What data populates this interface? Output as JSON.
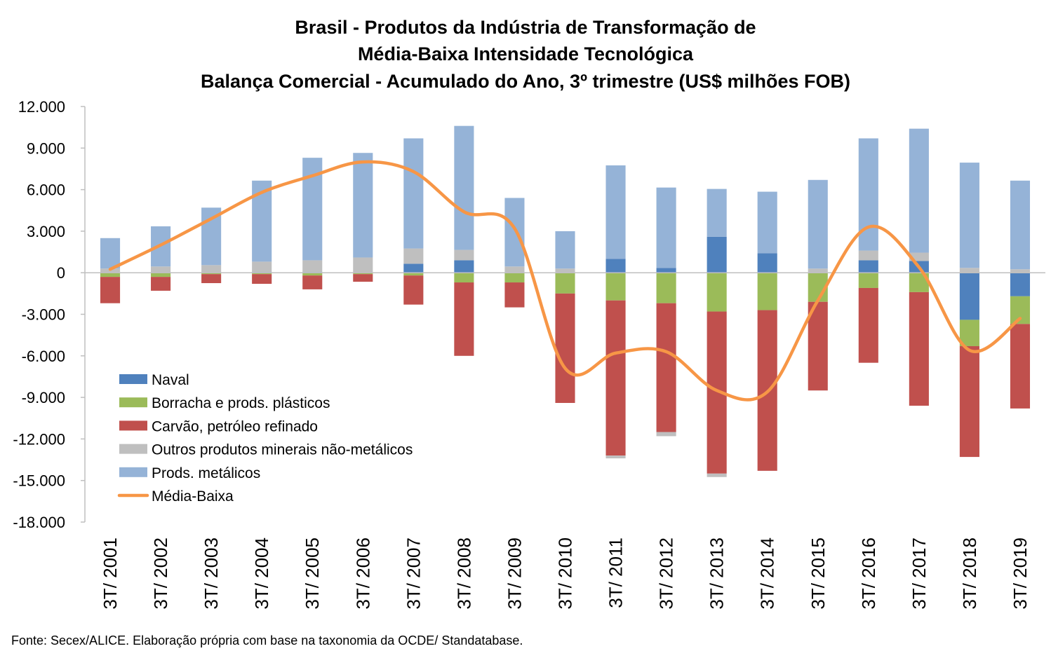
{
  "chart_data": {
    "type": "bar",
    "stacked": true,
    "title": [
      "Brasil - Produtos da Indústria de Transformação de",
      "Média-Baixa Intensidade Tecnológica",
      "Balança Comercial - Acumulado do Ano, 3º trimestre (US$ milhões FOB)"
    ],
    "source": "Fonte: Secex/ALICE. Elaboração própria com base na taxonomia da OCDE/ Standatabase.",
    "categories": [
      "3T/ 2001",
      "3T/ 2002",
      "3T/ 2003",
      "3T/ 2004",
      "3T/ 2005",
      "3T/ 2006",
      "3T/ 2007",
      "3T/ 2008",
      "3T/ 2009",
      "3T/ 2010",
      "3T/ 2011",
      "3T/ 2012",
      "3T/ 2013",
      "3T/ 2014",
      "3T/ 2015",
      "3T/ 2016",
      "3T/ 2017",
      "3T/ 2018",
      "3T/ 2019"
    ],
    "ylim": [
      -18000,
      12000
    ],
    "yticks": [
      12000,
      9000,
      6000,
      3000,
      0,
      -3000,
      -6000,
      -9000,
      -12000,
      -15000,
      -18000
    ],
    "ytick_labels": [
      "12.000",
      "9.000",
      "6.000",
      "3.000",
      "0",
      "-3.000",
      "-6.000",
      "-9.000",
      "-12.000",
      "-15.000",
      "-18.000"
    ],
    "legend_position": "lower-left",
    "series": [
      {
        "name": "Naval",
        "type": "bar",
        "color": "#4f81bd",
        "values": [
          0,
          0,
          0,
          50,
          50,
          0,
          650,
          900,
          0,
          0,
          1000,
          350,
          2600,
          1400,
          0,
          900,
          850,
          -3400,
          -1700
        ]
      },
      {
        "name": "Borracha e prods. plásticos",
        "type": "bar",
        "color": "#9bbb59",
        "values": [
          -300,
          -300,
          -100,
          -100,
          -200,
          -100,
          -200,
          -700,
          -700,
          -1500,
          -2000,
          -2200,
          -2800,
          -2700,
          -2100,
          -1100,
          -1400,
          -1900,
          -2000
        ]
      },
      {
        "name": "Carvão, petróleo refinado",
        "type": "bar",
        "color": "#c0504d",
        "values": [
          -1900,
          -1000,
          -650,
          -700,
          -1000,
          -550,
          -2100,
          -5300,
          -1800,
          -7900,
          -11200,
          -9300,
          -11700,
          -11600,
          -6400,
          -5400,
          -8200,
          -8000,
          -6100
        ]
      },
      {
        "name": "Outros produtos minerais não-metálicos",
        "type": "bar",
        "color": "#bfbfbf",
        "values": [
          300,
          450,
          550,
          750,
          850,
          1100,
          1100,
          750,
          450,
          300,
          -200,
          -300,
          -250,
          0,
          300,
          700,
          600,
          350,
          250
        ]
      },
      {
        "name": "Prods. metálicos",
        "type": "bar",
        "color": "#95b3d7",
        "values": [
          2200,
          2900,
          4150,
          5850,
          7400,
          7550,
          7950,
          8950,
          4950,
          2700,
          6750,
          5800,
          3450,
          4450,
          6400,
          8100,
          8950,
          7600,
          6400
        ]
      },
      {
        "name": "Média-Baixa",
        "type": "line",
        "color": "#f79646",
        "values": [
          250,
          2000,
          3900,
          5800,
          7000,
          8000,
          7300,
          4400,
          3200,
          -6900,
          -5800,
          -5700,
          -8500,
          -8600,
          -2000,
          3300,
          400,
          -5600,
          -3300
        ]
      }
    ]
  }
}
